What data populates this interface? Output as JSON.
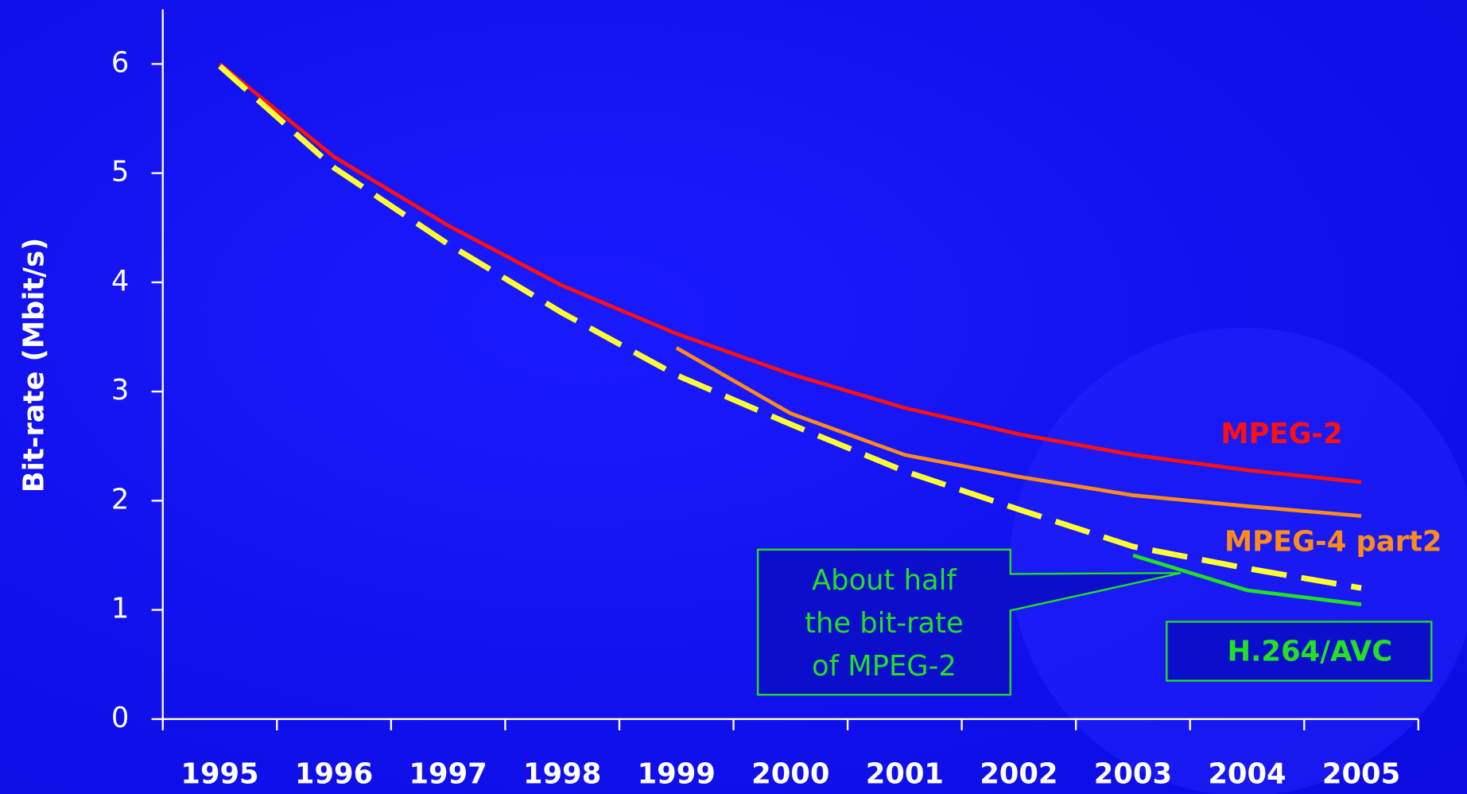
{
  "chart_data": {
    "type": "line",
    "y_label": "Bit-rate (Mbit/s)",
    "categories": [
      "1995",
      "1996",
      "1997",
      "1998",
      "1999",
      "2000",
      "2001",
      "2002",
      "2003",
      "2004",
      "2005"
    ],
    "ylim": [
      0,
      6.5
    ],
    "yticks": [
      0,
      1,
      2,
      3,
      4,
      5,
      6
    ],
    "series": [
      {
        "name": "MPEG-2",
        "color": "#ff1010",
        "values": [
          6.0,
          5.15,
          4.52,
          3.97,
          3.53,
          3.16,
          2.85,
          2.61,
          2.42,
          2.28,
          2.17
        ]
      },
      {
        "name": "MPEG-4 part2",
        "color": "#ff8c1a",
        "values": [
          null,
          null,
          null,
          null,
          3.4,
          2.8,
          2.42,
          2.22,
          2.05,
          1.95,
          1.86
        ]
      },
      {
        "name": "H.264/AVC",
        "color": "#22e022",
        "values": [
          null,
          null,
          null,
          null,
          null,
          null,
          null,
          null,
          1.5,
          1.18,
          1.05
        ]
      },
      {
        "color": "#ffff33",
        "dashed": true,
        "values": [
          5.98,
          5.05,
          4.35,
          3.72,
          3.15,
          2.7,
          2.27,
          1.92,
          1.58,
          1.38,
          1.2
        ]
      }
    ],
    "annotation": {
      "lines": [
        "About half",
        "the bit-rate",
        "of MPEG-2"
      ],
      "color": "#22e022"
    }
  }
}
